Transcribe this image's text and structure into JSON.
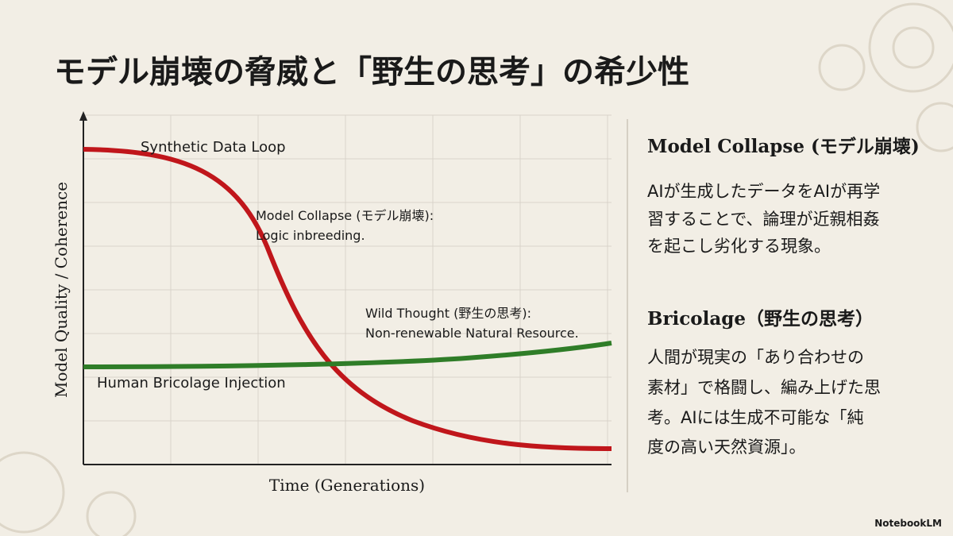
{
  "title": "モデル崩壊の脅威と「野生の思考」の希少性",
  "chart": {
    "y_axis_label": "Model Quality / Coherence",
    "x_axis_label": "Time (Generations)",
    "annotations": [
      {
        "lines": [
          "Synthetic Data Loop"
        ]
      },
      {
        "lines": [
          "Model Collapse (モデル崩壊):",
          "Logic inbreeding."
        ]
      },
      {
        "lines": [
          "Wild Thought (野生の思考):",
          "Non-renewable Natural Resource."
        ]
      },
      {
        "lines": [
          "Human Bricolage Injection"
        ]
      }
    ]
  },
  "sections": [
    {
      "heading": "Model Collapse (モデル崩壊)",
      "body_lines": [
        "AIが生成したデータをAIが再学",
        "習することで、論理が近親相姦",
        "を起こし劣化する現象。"
      ]
    },
    {
      "heading": "Bricolage（野生の思考）",
      "body_lines": [
        "人間が現実の「あり合わせの",
        "素材」で格闘し、編み上げた思",
        "考。AIには生成不可能な「純",
        "度の高い天然資源」。"
      ]
    }
  ],
  "footer": "NotebookLM"
}
